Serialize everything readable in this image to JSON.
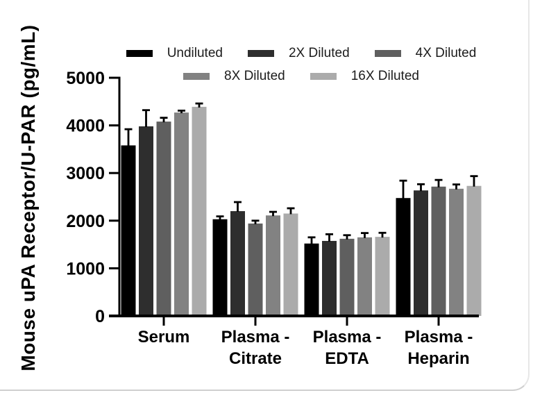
{
  "figure": {
    "background": "#ffffff",
    "axis_color": "#000000",
    "text_color": "#000000"
  },
  "chart_data": {
    "type": "bar",
    "title": "",
    "xlabel": "",
    "ylabel": "Mouse uPA Receptor/U-PAR (pg/mL)",
    "ylim": [
      0,
      5000
    ],
    "yticks": [
      0,
      1000,
      2000,
      3000,
      4000,
      5000
    ],
    "grid": false,
    "legend_position": "top",
    "legend_rows": [
      3,
      2
    ],
    "categories": [
      "Serum",
      "Plasma - Citrate",
      "Plasma - EDTA",
      "Plasma - Heparin"
    ],
    "category_label_lines": [
      [
        "Serum"
      ],
      [
        "Plasma -",
        "Citrate"
      ],
      [
        "Plasma -",
        "EDTA"
      ],
      [
        "Plasma -",
        "Heparin"
      ]
    ],
    "series": [
      {
        "name": "Undiluted",
        "color": "#000000",
        "values": [
          3580,
          2030,
          1520,
          2475
        ],
        "errors_plus": [
          340,
          60,
          130,
          365
        ]
      },
      {
        "name": "2X Diluted",
        "color": "#2e2e2e",
        "values": [
          3980,
          2200,
          1575,
          2635
        ],
        "errors_plus": [
          340,
          190,
          140,
          130
        ]
      },
      {
        "name": "4X Diluted",
        "color": "#5f5f5f",
        "values": [
          4080,
          1940,
          1620,
          2715
        ],
        "errors_plus": [
          80,
          60,
          75,
          140
        ]
      },
      {
        "name": "8X Diluted",
        "color": "#828282",
        "values": [
          4270,
          2110,
          1650,
          2670
        ],
        "errors_plus": [
          40,
          75,
          90,
          90
        ]
      },
      {
        "name": "16X Diluted",
        "color": "#ababab",
        "values": [
          4390,
          2150,
          1660,
          2730
        ],
        "errors_plus": [
          70,
          110,
          85,
          205
        ]
      }
    ],
    "error_bar_color": "#000000"
  }
}
